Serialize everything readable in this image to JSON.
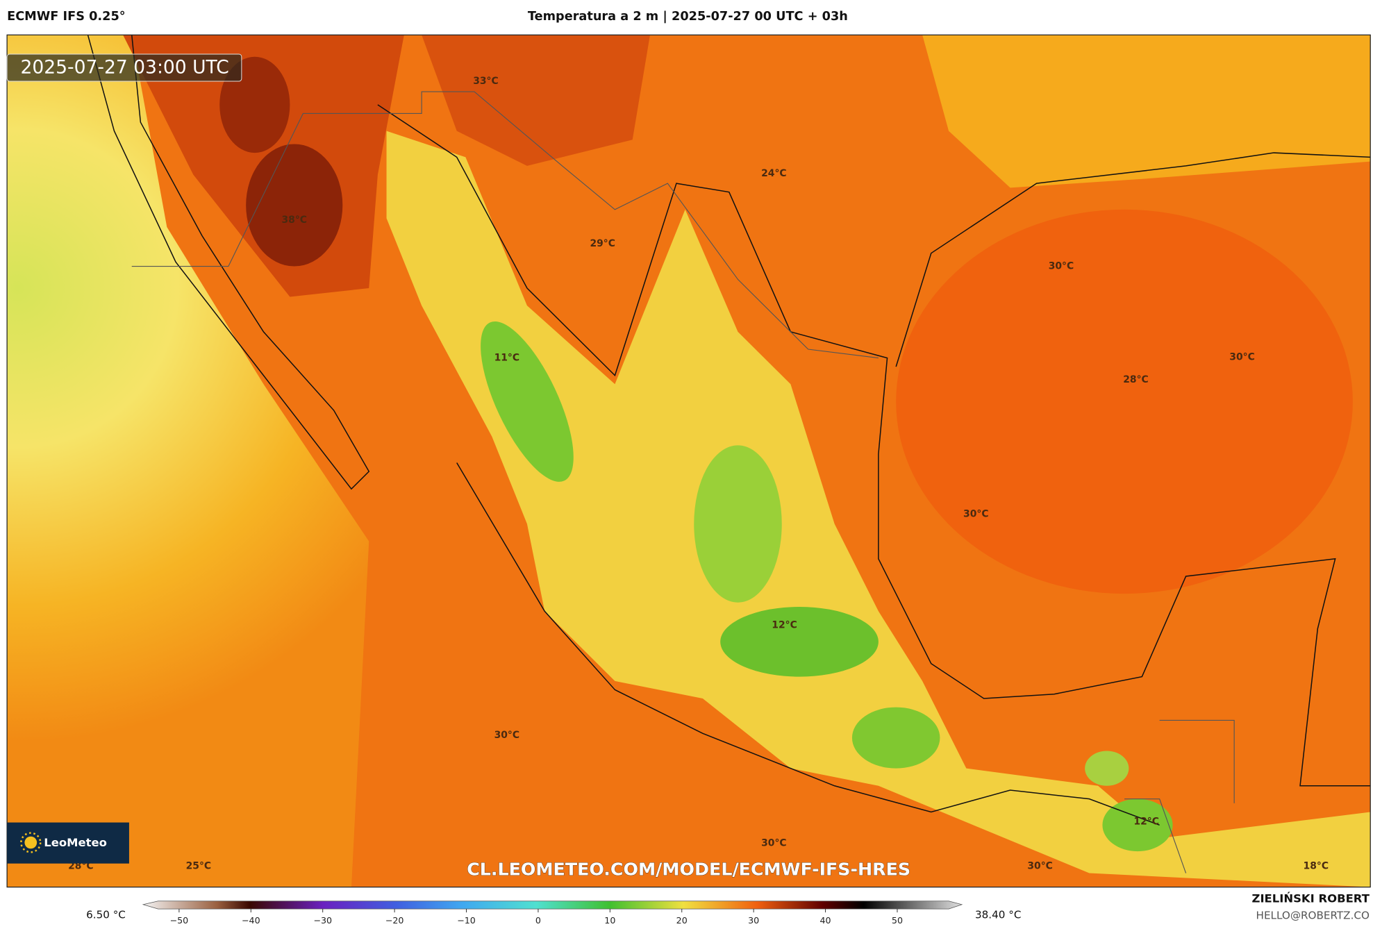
{
  "header": {
    "model": "ECMWF IFS 0.25°",
    "title": "Temperatura a 2 m | 2025-07-27 00 UTC + 03h"
  },
  "timestamp": "2025-07-27 03:00 UTC",
  "map_labels": [
    "33°C",
    "24°C",
    "38°C",
    "29°C",
    "30°C",
    "11°C",
    "30°C",
    "28°C",
    "30°C",
    "12°C",
    "30°C",
    "12°C",
    "30°C",
    "28°C",
    "25°C",
    "30°C",
    "18°C"
  ],
  "watermark": "CL.LEOMETEO.COM/MODEL/ECMWF-IFS-HRES",
  "logo": "LeoMeteo",
  "colorbar": {
    "min_label": "6.50 °C",
    "max_label": "38.40 °C",
    "lim": [
      -55,
      59
    ],
    "ticks": [
      {
        "value": -50,
        "label": "−50"
      },
      {
        "value": -40,
        "label": "−40"
      },
      {
        "value": -30,
        "label": "−30"
      },
      {
        "value": -20,
        "label": "−20"
      },
      {
        "value": -10,
        "label": "−10"
      },
      0,
      10,
      20,
      30,
      40,
      50
    ]
  },
  "footer": {
    "author": "ZIELIŃSKI ROBERT",
    "email": "HELLO@ROBERTZ.CO"
  }
}
